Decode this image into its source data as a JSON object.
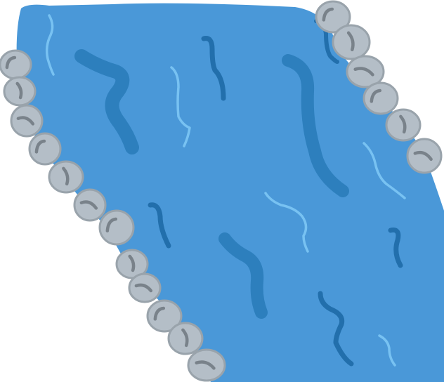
{
  "scene": {
    "subject": "water-with-rocky-banks",
    "colors": {
      "background": "#ffffff",
      "water": "#4a98d8",
      "ripple_dark": "#2d7fbd",
      "ripple_darker": "#226fac",
      "ripple_light": "#78c2f2",
      "rock_fill": "#b4bec7",
      "rock_outline": "#99a3ab",
      "rock_mark": "#79828a"
    },
    "icons": [
      "pebble-icon",
      "ripple-icon"
    ]
  }
}
